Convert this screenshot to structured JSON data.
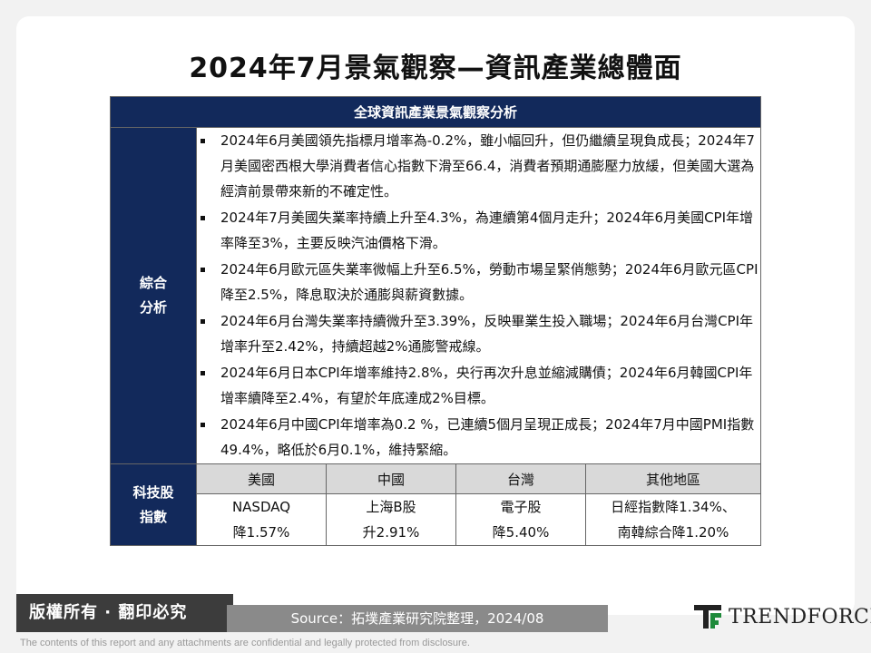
{
  "title": "2024年7月景氣觀察—資訊產業總體面",
  "table": {
    "header": "全球資訊產業景氣觀察分析",
    "analysis_label_line1": "綜合",
    "analysis_label_line2": "分析",
    "bullets": [
      "2024年6月美國領先指標月增率為-0.2%，雖小幅回升，但仍繼續呈現負成長；2024年7月美國密西根大學消費者信心指數下滑至66.4，消費者預期通膨壓力放緩，但美國大選為經濟前景帶來新的不確定性。",
      "2024年7月美國失業率持續上升至4.3%，為連續第4個月走升；2024年6月美國CPI年增率降至3%，主要反映汽油價格下滑。",
      "2024年6月歐元區失業率微幅上升至6.5%，勞動市場呈緊俏態勢；2024年6月歐元區CPI降至2.5%，降息取決於通膨與薪資數據。",
      "2024年6月台灣失業率持續微升至3.39%，反映畢業生投入職場；2024年6月台灣CPI年增率升至2.42%，持續超越2%通膨警戒線。",
      "2024年6月日本CPI年增率維持2.8%，央行再次升息並縮減購債；2024年6月韓國CPI年增率續降至2.4%，有望於年底達成2%目標。",
      "2024年6月中國CPI年增率為0.2 %，已連續5個月呈現正成長；2024年7月中國PMI指數49.4%，略低於6月0.1%，維持緊縮。"
    ],
    "tech_label_line1": "科技股",
    "tech_label_line2": "指數",
    "columns": [
      "美國",
      "中國",
      "台灣",
      "其他地區"
    ],
    "cells": [
      {
        "line1": "NASDAQ",
        "line2": "降1.57%"
      },
      {
        "line1": "上海B股",
        "line2": "升2.91%"
      },
      {
        "line1": "電子股",
        "line2": "降5.40%"
      },
      {
        "line1": "日經指數降1.34%、",
        "line2": "南韓綜合降1.20%"
      }
    ]
  },
  "footer": {
    "copyright": "版權所有 · 翻印必究",
    "source": "Source：拓墣產業研究院整理，2024/08",
    "logo_text": "TRENDFORCE",
    "disclaimer": "The contents of this report and any attachments are confidential and legally protected from disclosure."
  },
  "colors": {
    "navy": "#12295b",
    "logo_green": "#1e8a3a"
  }
}
